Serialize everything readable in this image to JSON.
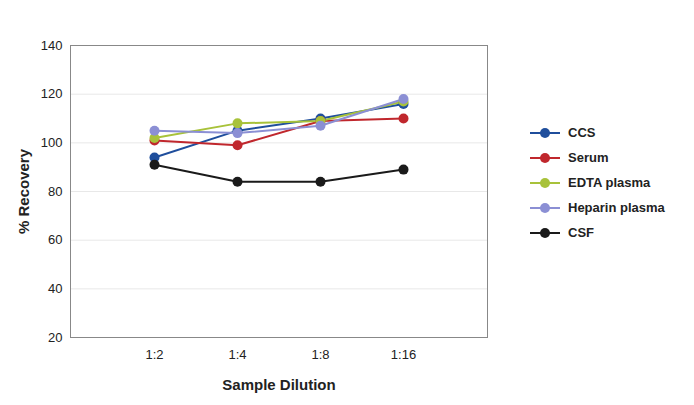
{
  "chart_data": {
    "type": "line",
    "x_label": "Sample Dilution",
    "y_label": "% Recovery",
    "categories": [
      "1:2",
      "1:4",
      "1:8",
      "1:16"
    ],
    "series": [
      {
        "name": "CCS",
        "color": "#1f4e9c",
        "marker": "circle",
        "values": [
          94,
          105,
          110,
          116
        ]
      },
      {
        "name": "Serum",
        "color": "#c0272d",
        "marker": "circle",
        "values": [
          101,
          99,
          109,
          110
        ]
      },
      {
        "name": "EDTA plasma",
        "color": "#a8c23a",
        "marker": "circle",
        "values": [
          102,
          108,
          109,
          117
        ]
      },
      {
        "name": "Heparin plasma",
        "color": "#8b8fd4",
        "marker": "circle",
        "values": [
          105,
          104,
          107,
          118
        ]
      },
      {
        "name": "CSF",
        "color": "#1a1a1a",
        "marker": "circle",
        "values": [
          91,
          84,
          84,
          89
        ]
      }
    ],
    "ylim": [
      20,
      140
    ],
    "yticks": [
      20,
      40,
      60,
      80,
      100,
      120,
      140
    ],
    "grid": true,
    "legend": "right"
  }
}
